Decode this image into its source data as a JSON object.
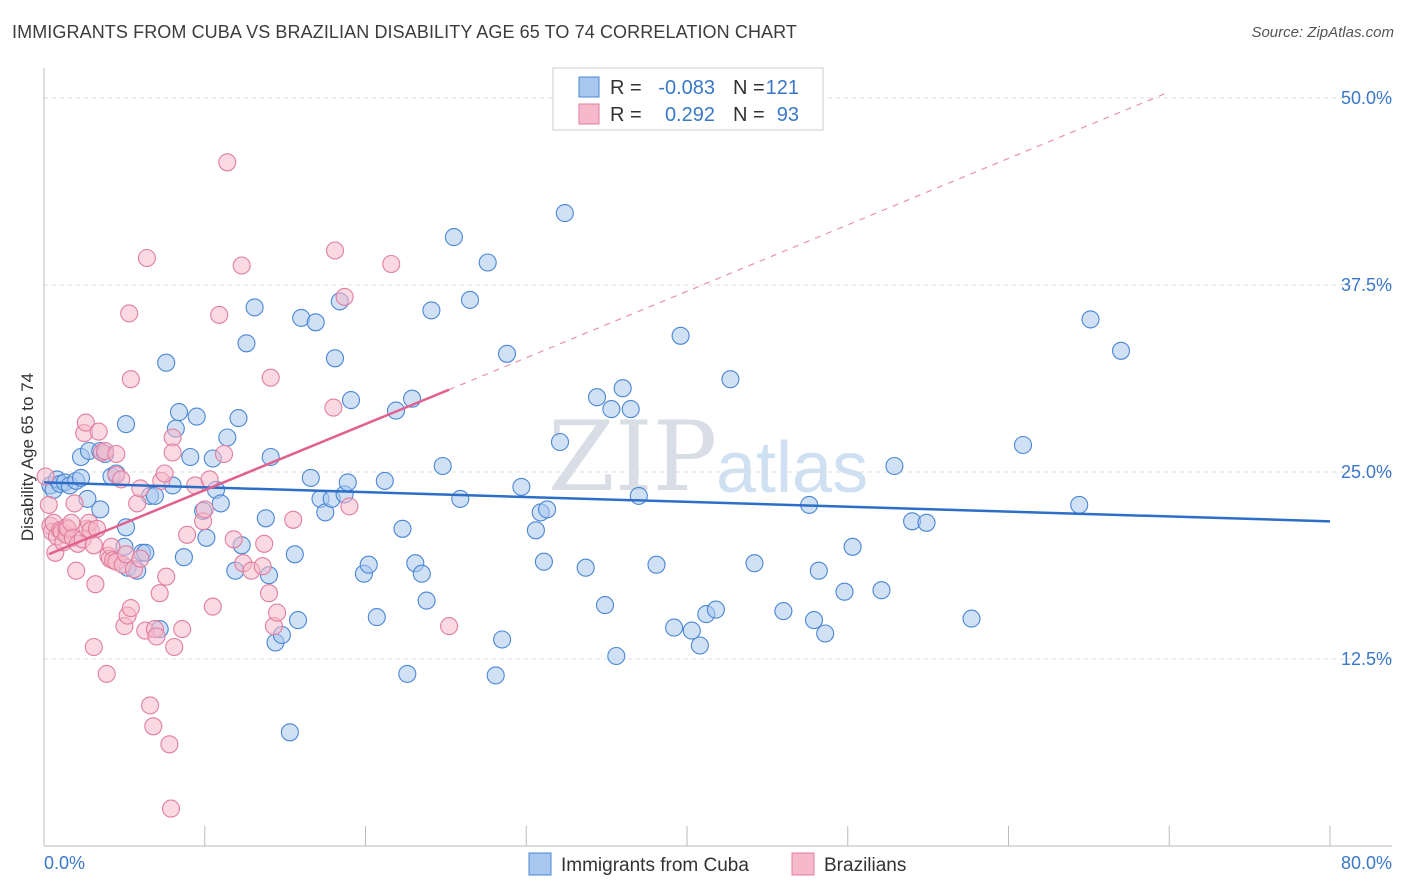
{
  "header": {
    "title": "IMMIGRANTS FROM CUBA VS BRAZILIAN DISABILITY AGE 65 TO 74 CORRELATION CHART",
    "source": "Source: ZipAtlas.com"
  },
  "watermark": {
    "zip": "ZIP",
    "atlas": "atlas"
  },
  "legend": {
    "r_label": "R =",
    "n_label": "N =",
    "rows": [
      {
        "r": "-0.083",
        "n": "121"
      },
      {
        "r": "0.292",
        "n": "93"
      }
    ]
  },
  "colors": {
    "blue_fill": "#a9c8ee",
    "blue_stroke": "#4a86d4",
    "blue_line": "#2d6ec9",
    "pink_fill": "#f6b9cb",
    "pink_stroke": "#e07ea0",
    "pink_line": "#e0618f",
    "grid": "#dddddd",
    "axis_label": "#3a78c9"
  },
  "chart_data": {
    "type": "scatter",
    "title": "IMMIGRANTS FROM CUBA VS BRAZILIAN DISABILITY AGE 65 TO 74 CORRELATION CHART",
    "xlabel": "",
    "ylabel": "Disability Age 65 to 74",
    "xlim": [
      0,
      80
    ],
    "ylim": [
      0,
      52
    ],
    "x_tick_labels": [
      "0.0%",
      "80.0%"
    ],
    "y_ticks": [
      12.5,
      25.0,
      37.5,
      50.0
    ],
    "y_tick_labels": [
      "12.5%",
      "25.0%",
      "37.5%",
      "50.0%"
    ],
    "series": [
      {
        "name": "Immigrants from Cuba",
        "r": -0.083,
        "n": 121,
        "trend": {
          "x": [
            0,
            80
          ],
          "y": [
            24.3,
            21.7
          ]
        },
        "points": [
          [
            0.4,
            24.1
          ],
          [
            0.6,
            23.8
          ],
          [
            0.8,
            24.5
          ],
          [
            1.0,
            24.2
          ],
          [
            1.3,
            24.3
          ],
          [
            1.6,
            24.1
          ],
          [
            2.0,
            24.4
          ],
          [
            2.3,
            24.6
          ],
          [
            2.3,
            26.0
          ],
          [
            2.7,
            23.2
          ],
          [
            2.8,
            26.4
          ],
          [
            3.5,
            22.5
          ],
          [
            3.5,
            26.4
          ],
          [
            3.8,
            26.2
          ],
          [
            4.2,
            24.7
          ],
          [
            4.5,
            24.9
          ],
          [
            5.0,
            20.0
          ],
          [
            5.1,
            21.3
          ],
          [
            5.1,
            28.2
          ],
          [
            5.2,
            18.6
          ],
          [
            5.8,
            18.4
          ],
          [
            6.1,
            19.6
          ],
          [
            6.3,
            19.6
          ],
          [
            6.6,
            23.4
          ],
          [
            6.9,
            23.4
          ],
          [
            7.2,
            14.5
          ],
          [
            7.6,
            32.3
          ],
          [
            8.0,
            24.1
          ],
          [
            8.2,
            27.9
          ],
          [
            8.4,
            29.0
          ],
          [
            8.7,
            19.3
          ],
          [
            9.1,
            26.0
          ],
          [
            9.5,
            28.7
          ],
          [
            9.9,
            22.4
          ],
          [
            10.1,
            20.6
          ],
          [
            10.5,
            25.9
          ],
          [
            10.7,
            23.8
          ],
          [
            11.0,
            22.9
          ],
          [
            11.4,
            27.3
          ],
          [
            11.9,
            18.4
          ],
          [
            12.1,
            28.6
          ],
          [
            12.3,
            20.1
          ],
          [
            12.6,
            33.6
          ],
          [
            13.1,
            36.0
          ],
          [
            13.8,
            21.9
          ],
          [
            14.0,
            18.1
          ],
          [
            14.1,
            26.0
          ],
          [
            14.4,
            13.6
          ],
          [
            14.8,
            14.1
          ],
          [
            15.3,
            7.6
          ],
          [
            15.6,
            19.5
          ],
          [
            15.8,
            15.1
          ],
          [
            16.0,
            35.3
          ],
          [
            16.6,
            24.6
          ],
          [
            16.9,
            35.0
          ],
          [
            17.2,
            23.2
          ],
          [
            17.5,
            22.3
          ],
          [
            17.9,
            23.2
          ],
          [
            18.1,
            32.6
          ],
          [
            18.4,
            36.4
          ],
          [
            18.7,
            23.5
          ],
          [
            18.9,
            24.3
          ],
          [
            19.1,
            29.8
          ],
          [
            19.9,
            18.2
          ],
          [
            20.2,
            18.8
          ],
          [
            20.7,
            15.3
          ],
          [
            21.2,
            24.4
          ],
          [
            21.9,
            29.1
          ],
          [
            22.3,
            21.2
          ],
          [
            22.6,
            11.5
          ],
          [
            22.9,
            29.9
          ],
          [
            23.1,
            18.9
          ],
          [
            23.5,
            18.2
          ],
          [
            23.8,
            16.4
          ],
          [
            24.1,
            35.8
          ],
          [
            24.8,
            25.4
          ],
          [
            25.5,
            40.7
          ],
          [
            25.9,
            23.2
          ],
          [
            26.5,
            36.5
          ],
          [
            27.6,
            39.0
          ],
          [
            28.1,
            11.4
          ],
          [
            28.5,
            13.8
          ],
          [
            28.8,
            32.9
          ],
          [
            29.7,
            24.0
          ],
          [
            30.6,
            21.1
          ],
          [
            30.9,
            22.3
          ],
          [
            31.1,
            19.0
          ],
          [
            31.3,
            22.5
          ],
          [
            32.1,
            27.0
          ],
          [
            32.4,
            42.3
          ],
          [
            33.7,
            18.6
          ],
          [
            34.4,
            30.0
          ],
          [
            34.9,
            16.1
          ],
          [
            35.3,
            29.2
          ],
          [
            35.6,
            12.7
          ],
          [
            36.0,
            30.6
          ],
          [
            36.5,
            29.2
          ],
          [
            37.0,
            23.4
          ],
          [
            38.1,
            18.8
          ],
          [
            39.2,
            14.6
          ],
          [
            39.6,
            34.1
          ],
          [
            40.3,
            14.4
          ],
          [
            40.8,
            13.4
          ],
          [
            41.2,
            15.5
          ],
          [
            41.8,
            15.8
          ],
          [
            42.7,
            31.2
          ],
          [
            44.2,
            18.9
          ],
          [
            46.0,
            15.7
          ],
          [
            47.6,
            22.8
          ],
          [
            47.9,
            15.1
          ],
          [
            48.2,
            18.4
          ],
          [
            48.6,
            14.2
          ],
          [
            49.8,
            17.0
          ],
          [
            50.3,
            20.0
          ],
          [
            52.1,
            17.1
          ],
          [
            52.9,
            25.4
          ],
          [
            54.0,
            21.7
          ],
          [
            54.9,
            21.6
          ],
          [
            57.7,
            15.2
          ],
          [
            60.9,
            26.8
          ],
          [
            64.4,
            22.8
          ],
          [
            65.1,
            35.2
          ],
          [
            67.0,
            33.1
          ]
        ]
      },
      {
        "name": "Brazilians",
        "r": 0.292,
        "n": 93,
        "trend": {
          "x": [
            0.3,
            25.2
          ],
          "y": [
            19.5,
            30.5
          ],
          "dashed_to": {
            "x": 70,
            "y": 50.4
          }
        },
        "points": [
          [
            0.1,
            24.7
          ],
          [
            0.3,
            22.8
          ],
          [
            0.4,
            21.4
          ],
          [
            0.5,
            21.0
          ],
          [
            0.6,
            21.6
          ],
          [
            0.7,
            19.6
          ],
          [
            0.8,
            20.7
          ],
          [
            1.0,
            21.1
          ],
          [
            1.1,
            21.0
          ],
          [
            1.2,
            20.3
          ],
          [
            1.4,
            20.8
          ],
          [
            1.4,
            21.3
          ],
          [
            1.5,
            21.2
          ],
          [
            1.7,
            21.6
          ],
          [
            1.8,
            20.6
          ],
          [
            1.9,
            22.9
          ],
          [
            2.0,
            18.4
          ],
          [
            2.1,
            20.2
          ],
          [
            2.4,
            20.5
          ],
          [
            2.5,
            27.6
          ],
          [
            2.6,
            28.3
          ],
          [
            2.7,
            21.2
          ],
          [
            2.8,
            21.6
          ],
          [
            2.9,
            21.1
          ],
          [
            3.1,
            20.1
          ],
          [
            3.1,
            13.3
          ],
          [
            3.2,
            17.5
          ],
          [
            3.3,
            21.2
          ],
          [
            3.4,
            27.7
          ],
          [
            3.6,
            26.3
          ],
          [
            3.8,
            26.4
          ],
          [
            3.9,
            11.5
          ],
          [
            4.0,
            19.4
          ],
          [
            4.1,
            19.2
          ],
          [
            4.2,
            20.0
          ],
          [
            4.3,
            19.1
          ],
          [
            4.5,
            19.0
          ],
          [
            4.5,
            24.8
          ],
          [
            4.5,
            26.2
          ],
          [
            4.8,
            24.5
          ],
          [
            4.9,
            18.8
          ],
          [
            5.0,
            14.7
          ],
          [
            5.1,
            19.5
          ],
          [
            5.2,
            15.4
          ],
          [
            5.3,
            35.6
          ],
          [
            5.4,
            15.9
          ],
          [
            5.4,
            31.2
          ],
          [
            5.6,
            18.5
          ],
          [
            5.8,
            22.9
          ],
          [
            6.0,
            23.9
          ],
          [
            6.0,
            19.2
          ],
          [
            6.3,
            14.4
          ],
          [
            6.4,
            39.3
          ],
          [
            6.6,
            9.4
          ],
          [
            6.8,
            8.0
          ],
          [
            6.9,
            14.5
          ],
          [
            7.0,
            14.0
          ],
          [
            7.2,
            16.9
          ],
          [
            7.3,
            24.4
          ],
          [
            7.5,
            24.9
          ],
          [
            7.6,
            18.0
          ],
          [
            7.8,
            6.8
          ],
          [
            7.9,
            2.5
          ],
          [
            8.0,
            27.3
          ],
          [
            8.0,
            26.3
          ],
          [
            8.1,
            13.3
          ],
          [
            8.6,
            14.5
          ],
          [
            8.9,
            20.8
          ],
          [
            9.4,
            24.1
          ],
          [
            9.9,
            21.7
          ],
          [
            10.0,
            22.5
          ],
          [
            10.3,
            24.5
          ],
          [
            10.5,
            16.0
          ],
          [
            10.9,
            35.5
          ],
          [
            11.2,
            26.2
          ],
          [
            11.4,
            45.7
          ],
          [
            11.8,
            20.5
          ],
          [
            12.3,
            38.8
          ],
          [
            12.4,
            18.9
          ],
          [
            12.9,
            18.4
          ],
          [
            13.6,
            18.7
          ],
          [
            13.7,
            20.2
          ],
          [
            14.0,
            16.9
          ],
          [
            14.1,
            31.3
          ],
          [
            14.3,
            14.7
          ],
          [
            14.5,
            15.6
          ],
          [
            15.5,
            21.8
          ],
          [
            18.0,
            29.3
          ],
          [
            18.1,
            39.8
          ],
          [
            18.7,
            36.7
          ],
          [
            19.0,
            22.7
          ],
          [
            21.6,
            38.9
          ],
          [
            25.2,
            14.7
          ]
        ]
      }
    ]
  },
  "bottom_legend": [
    {
      "label": "Immigrants from Cuba"
    },
    {
      "label": "Brazilians"
    }
  ]
}
